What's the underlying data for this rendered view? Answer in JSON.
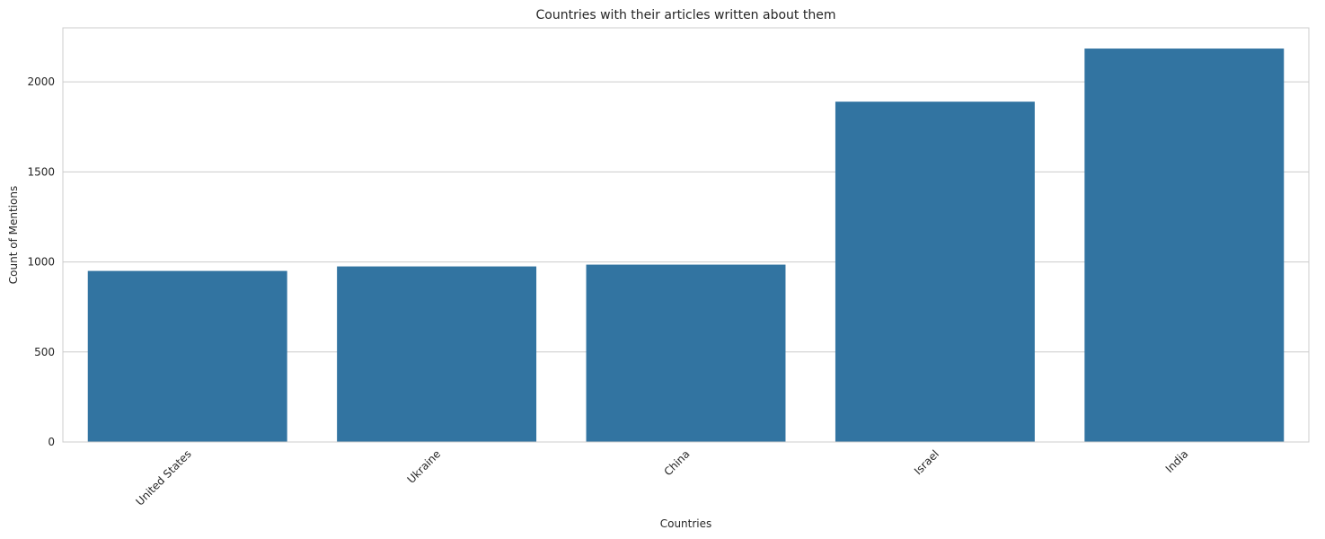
{
  "chart_data": {
    "type": "bar",
    "title": "Countries with their articles written about them",
    "xlabel": "Countries",
    "ylabel": "Count of Mentions",
    "categories": [
      "United States",
      "Ukraine",
      "China",
      "Israel",
      "India"
    ],
    "values": [
      950,
      975,
      985,
      1890,
      2185
    ],
    "ylim": [
      0,
      2300
    ],
    "yticks": [
      0,
      500,
      1000,
      1500,
      2000
    ],
    "grid": "horizontal",
    "bar_color": "#3274a1",
    "background_color": "#ffffff",
    "grid_color": "#cccccc",
    "tick_label_rotation": "45 degrees"
  }
}
